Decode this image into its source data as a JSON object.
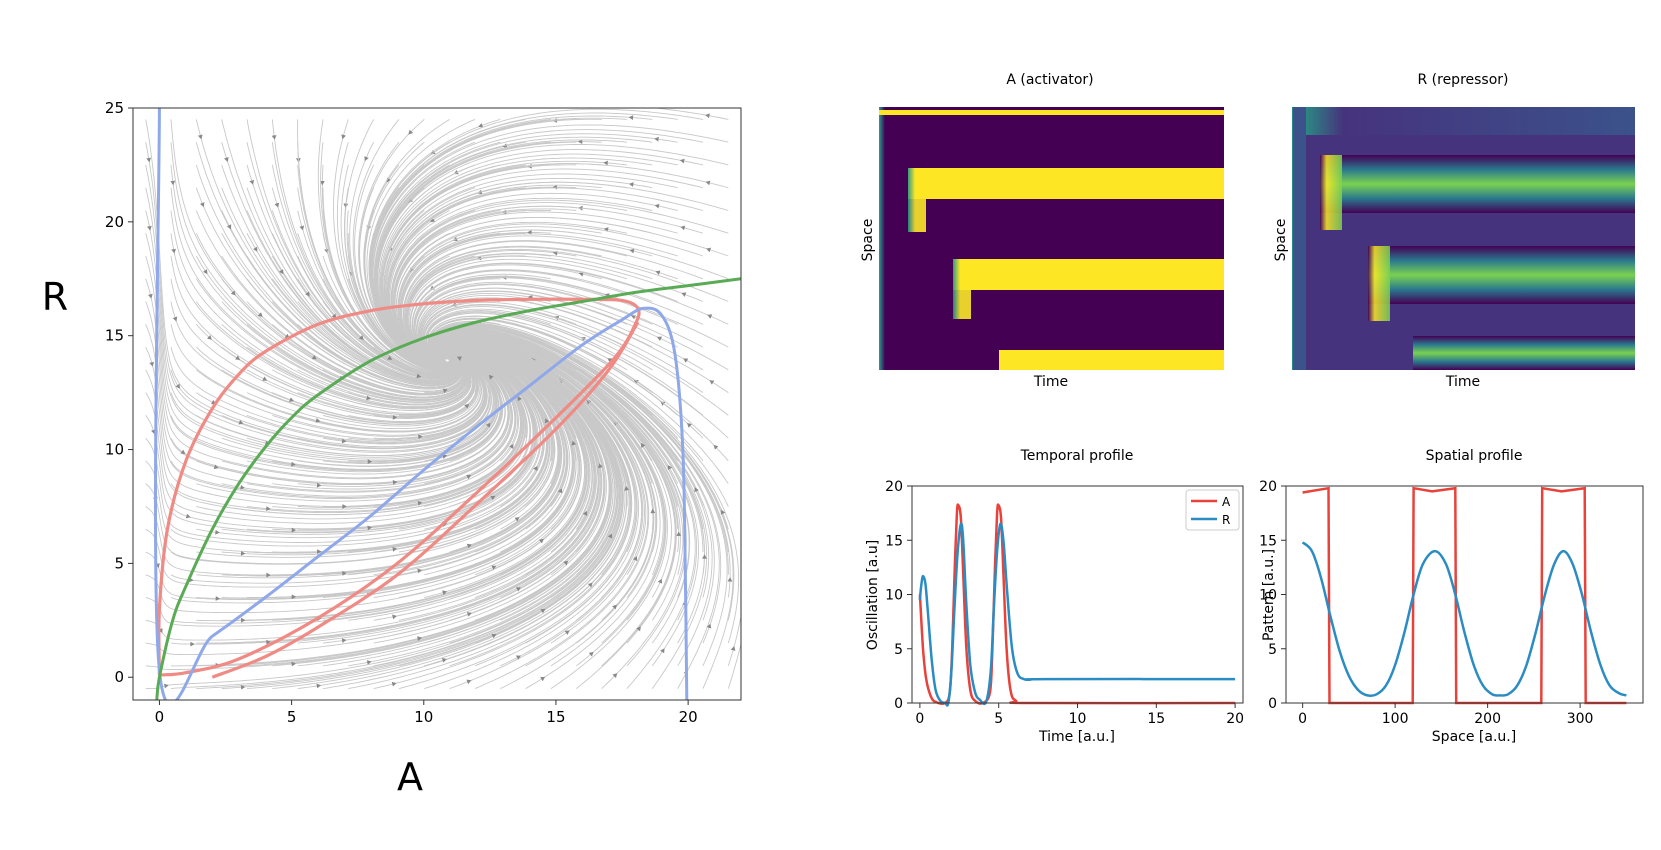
{
  "colors": {
    "red": "#e8423a",
    "blue": "#2b8cc4",
    "phase_red": "#f08a84",
    "phase_blue": "#8ea8ea",
    "phase_green": "#5aab55",
    "stream": "#c8c8c8",
    "viridis_dark": "#440154",
    "viridis_yellow": "#fde725"
  },
  "chart_data": [
    {
      "type": "phase_portrait",
      "xlabel": "A",
      "ylabel": "R",
      "xlim": [
        -1,
        22
      ],
      "ylim": [
        -1,
        25
      ],
      "xticks": [
        0,
        5,
        10,
        15,
        20
      ],
      "yticks": [
        0,
        5,
        10,
        15,
        20,
        25
      ],
      "nullcline_A_blue": [
        [
          0,
          25
        ],
        [
          0,
          0.3
        ],
        [
          2,
          1.8
        ],
        [
          4,
          3.5
        ],
        [
          6,
          5.3
        ],
        [
          8,
          7.1
        ],
        [
          10,
          9.1
        ],
        [
          12,
          11.0
        ],
        [
          14,
          12.8
        ],
        [
          16,
          14.6
        ],
        [
          17.5,
          15.7
        ],
        [
          18.3,
          16.2
        ],
        [
          19.0,
          15.9
        ],
        [
          19.5,
          14.2
        ],
        [
          19.8,
          10
        ],
        [
          19.9,
          4
        ],
        [
          19.95,
          -1
        ]
      ],
      "nullcline_R_green": [
        [
          -0.1,
          -1
        ],
        [
          0,
          0
        ],
        [
          0.5,
          2.5
        ],
        [
          1,
          4.0
        ],
        [
          2,
          6.5
        ],
        [
          3,
          8.5
        ],
        [
          4,
          10.1
        ],
        [
          5,
          11.4
        ],
        [
          6,
          12.4
        ],
        [
          8,
          13.9
        ],
        [
          10,
          14.9
        ],
        [
          12,
          15.6
        ],
        [
          14,
          16.1
        ],
        [
          16,
          16.5
        ],
        [
          18,
          16.9
        ],
        [
          20,
          17.2
        ],
        [
          22,
          17.5
        ]
      ],
      "trajectory_red": [
        [
          0,
          0.1
        ],
        [
          0,
          3
        ],
        [
          0.3,
          6.5
        ],
        [
          1,
          9.5
        ],
        [
          2,
          11.8
        ],
        [
          3,
          13.3
        ],
        [
          4,
          14.3
        ],
        [
          6,
          15.5
        ],
        [
          8,
          16.1
        ],
        [
          10,
          16.4
        ],
        [
          12,
          16.55
        ],
        [
          14,
          16.6
        ],
        [
          16,
          16.6
        ],
        [
          17.5,
          16.55
        ],
        [
          18.1,
          16.2
        ],
        [
          18.0,
          15.5
        ],
        [
          17.2,
          14.0
        ],
        [
          15,
          11.4
        ],
        [
          12,
          8.1
        ],
        [
          9,
          5.0
        ],
        [
          6,
          2.6
        ],
        [
          3,
          0.8
        ],
        [
          1,
          0.2
        ],
        [
          0,
          0.1
        ]
      ],
      "trajectory_red_inner": [
        [
          2,
          0
        ],
        [
          4,
          0.9
        ],
        [
          6,
          2.2
        ],
        [
          9,
          4.5
        ],
        [
          12,
          7.6
        ],
        [
          15,
          10.9
        ],
        [
          17,
          13.5
        ],
        [
          18.1,
          15.6
        ]
      ]
    },
    {
      "type": "heatmap",
      "title": "A (activator)",
      "xlabel": "Time",
      "ylabel": "Space"
    },
    {
      "type": "heatmap",
      "title": "R (repressor)",
      "xlabel": "Time",
      "ylabel": "Space"
    },
    {
      "type": "line",
      "title": "Temporal profile",
      "xlabel": "Time [a.u.]",
      "ylabel": "Oscillation [a.u]",
      "xlim": [
        -0.5,
        20.5
      ],
      "ylim": [
        0,
        20
      ],
      "xticks": [
        0,
        5,
        10,
        15,
        20
      ],
      "yticks": [
        0,
        5,
        10,
        15,
        20
      ],
      "legend": [
        "A",
        "R"
      ],
      "series": [
        {
          "name": "A",
          "points": [
            [
              0,
              10
            ],
            [
              0.2,
              5
            ],
            [
              0.4,
              2.2
            ],
            [
              0.7,
              0.6
            ],
            [
              1,
              0.1
            ],
            [
              1.6,
              0
            ],
            [
              1.9,
              1
            ],
            [
              2.05,
              5
            ],
            [
              2.2,
              12
            ],
            [
              2.35,
              17.5
            ],
            [
              2.45,
              18.2
            ],
            [
              2.6,
              17
            ],
            [
              2.75,
              12
            ],
            [
              2.95,
              5
            ],
            [
              3.2,
              1.2
            ],
            [
              3.5,
              0.2
            ],
            [
              4,
              0
            ],
            [
              4.45,
              1
            ],
            [
              4.6,
              5
            ],
            [
              4.75,
              12
            ],
            [
              4.9,
              17.5
            ],
            [
              5.0,
              18.2
            ],
            [
              5.15,
              17
            ],
            [
              5.3,
              12
            ],
            [
              5.5,
              5
            ],
            [
              5.75,
              1.2
            ],
            [
              6.1,
              0.2
            ],
            [
              7,
              0
            ],
            [
              20,
              0
            ]
          ]
        },
        {
          "name": "R",
          "points": [
            [
              0,
              9.5
            ],
            [
              0.1,
              11
            ],
            [
              0.2,
              11.7
            ],
            [
              0.35,
              11
            ],
            [
              0.5,
              8.5
            ],
            [
              0.75,
              4
            ],
            [
              1,
              1.2
            ],
            [
              1.3,
              0.2
            ],
            [
              1.6,
              0
            ],
            [
              1.8,
              0
            ],
            [
              2.0,
              3
            ],
            [
              2.2,
              9
            ],
            [
              2.4,
              14
            ],
            [
              2.6,
              16.5
            ],
            [
              2.75,
              15
            ],
            [
              2.95,
              9
            ],
            [
              3.2,
              3.5
            ],
            [
              3.5,
              1
            ],
            [
              3.8,
              0.3
            ],
            [
              4.2,
              0.1
            ],
            [
              4.5,
              3
            ],
            [
              4.7,
              9
            ],
            [
              4.9,
              14
            ],
            [
              5.1,
              16.5
            ],
            [
              5.3,
              15
            ],
            [
              5.55,
              10
            ],
            [
              5.85,
              5
            ],
            [
              6.2,
              2.7
            ],
            [
              6.6,
              2.2
            ],
            [
              7,
              2.15
            ],
            [
              8,
              2.2
            ],
            [
              20,
              2.2
            ]
          ]
        }
      ]
    },
    {
      "type": "line",
      "title": "Spatial profile",
      "xlabel": "Space [a.u.]",
      "ylabel": "Pattern [a.u.]",
      "xlim": [
        -18,
        368
      ],
      "ylim": [
        0,
        20
      ],
      "xticks": [
        0,
        100,
        200,
        300
      ],
      "yticks": [
        0,
        5,
        10,
        15,
        20
      ],
      "series": [
        {
          "name": "A",
          "points": [
            [
              0,
              19.4
            ],
            [
              28,
              19.8
            ],
            [
              29,
              0
            ],
            [
              119,
              0
            ],
            [
              120,
              19.8
            ],
            [
              140,
              19.5
            ],
            [
              165,
              19.8
            ],
            [
              166,
              0
            ],
            [
              258,
              0
            ],
            [
              259,
              19.8
            ],
            [
              280,
              19.5
            ],
            [
              305,
              19.8
            ],
            [
              306,
              0
            ],
            [
              350,
              0
            ]
          ]
        },
        {
          "name": "R",
          "points": [
            [
              0,
              14.8
            ],
            [
              10,
              14
            ],
            [
              20,
              11.5
            ],
            [
              30,
              8
            ],
            [
              40,
              4.8
            ],
            [
              50,
              2.5
            ],
            [
              60,
              1.2
            ],
            [
              70,
              0.7
            ],
            [
              80,
              0.8
            ],
            [
              90,
              1.6
            ],
            [
              100,
              3.5
            ],
            [
              110,
              6.5
            ],
            [
              120,
              10
            ],
            [
              130,
              12.8
            ],
            [
              143,
              14
            ],
            [
              155,
              12.8
            ],
            [
              165,
              10
            ],
            [
              175,
              6.5
            ],
            [
              185,
              3.5
            ],
            [
              195,
              1.6
            ],
            [
              205,
              0.8
            ],
            [
              213,
              0.7
            ],
            [
              222,
              0.8
            ],
            [
              232,
              1.6
            ],
            [
              242,
              3.5
            ],
            [
              252,
              6.5
            ],
            [
              262,
              10
            ],
            [
              272,
              12.8
            ],
            [
              282,
              14
            ],
            [
              292,
              12.8
            ],
            [
              302,
              10
            ],
            [
              312,
              6.5
            ],
            [
              322,
              3.5
            ],
            [
              332,
              1.6
            ],
            [
              342,
              0.9
            ],
            [
              350,
              0.7
            ]
          ]
        }
      ]
    }
  ]
}
